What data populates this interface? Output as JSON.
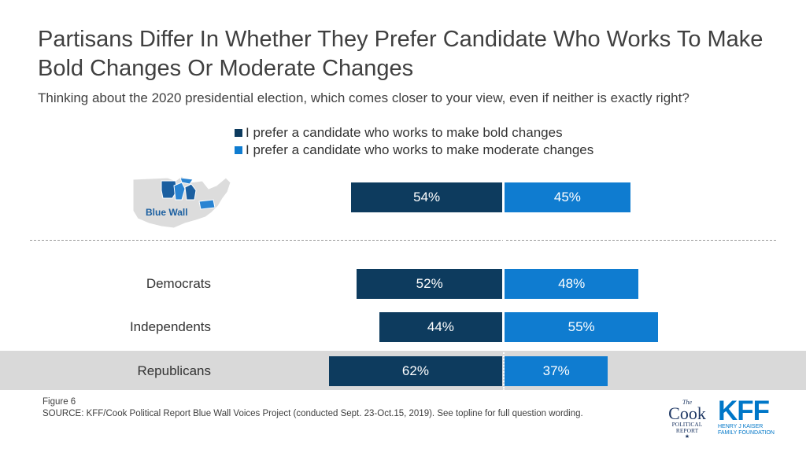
{
  "title": "Partisans Differ In Whether They Prefer Candidate Who Works To Make Bold Changes Or Moderate Changes",
  "subtitle": "Thinking about the 2020 presidential election, which comes closer to your view, even if neither is exactly right?",
  "colors": {
    "bold": "#0d3b5e",
    "moderate": "#0f7cd0",
    "band": "#d9d9d9"
  },
  "map_label": "Blue Wall",
  "figure_label": "Figure 6",
  "source": "SOURCE: KFF/Cook Political Report Blue Wall Voices Project (conducted Sept. 23-Oct.15, 2019). See topline for full question wording.",
  "logos": {
    "cook_the": "The",
    "cook_name": "Cook",
    "cook_sub1": "POLITICAL",
    "cook_sub2": "REPORT",
    "kff_name": "KFF",
    "kff_sub": "HENRY J KAISER\nFAMILY FOUNDATION"
  },
  "chart_data": {
    "type": "bar",
    "orientation": "horizontal-diverging",
    "series": [
      {
        "name": "I prefer a candidate who works to make bold changes",
        "values": [
          54,
          52,
          44,
          62
        ]
      },
      {
        "name": "I prefer a candidate who works to make moderate changes",
        "values": [
          45,
          48,
          55,
          37
        ]
      }
    ],
    "categories": [
      "Blue Wall",
      "Democrats",
      "Independents",
      "Republicans"
    ],
    "value_labels": [
      [
        "54%",
        "52%",
        "44%",
        "62%"
      ],
      [
        "45%",
        "48%",
        "55%",
        "37%"
      ]
    ],
    "legend_position": "top",
    "grid": false
  }
}
